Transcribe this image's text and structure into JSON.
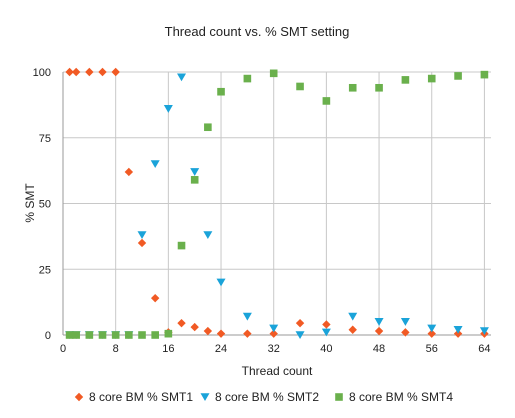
{
  "chart_data": {
    "type": "scatter",
    "title": "Thread count vs. % SMT setting",
    "xlabel": "Thread count",
    "ylabel": "% SMT",
    "xlim": [
      0,
      65
    ],
    "ylim": [
      0,
      100
    ],
    "xticks": [
      0,
      8,
      16,
      24,
      32,
      40,
      48,
      56,
      64
    ],
    "yticks": [
      0,
      25,
      50,
      75,
      100
    ],
    "grid": "vertical at x ticks, horizontal at y ticks",
    "legend_position": "bottom",
    "series": [
      {
        "name": "8 core BM % SMT1",
        "color": "#f15a24",
        "marker": "diamond",
        "points": [
          [
            1,
            100
          ],
          [
            2,
            100
          ],
          [
            4,
            100
          ],
          [
            6,
            100
          ],
          [
            8,
            100
          ],
          [
            10,
            62
          ],
          [
            12,
            35
          ],
          [
            14,
            14
          ],
          [
            16,
            1
          ],
          [
            18,
            4.5
          ],
          [
            20,
            3
          ],
          [
            22,
            1.5
          ],
          [
            24,
            0.5
          ],
          [
            28,
            0.5
          ],
          [
            32,
            0.5
          ],
          [
            36,
            4.5
          ],
          [
            40,
            4
          ],
          [
            44,
            2
          ],
          [
            48,
            1.5
          ],
          [
            52,
            1
          ],
          [
            56,
            0.5
          ],
          [
            60,
            0.5
          ],
          [
            64,
            0.5
          ]
        ]
      },
      {
        "name": "8 core BM % SMT2",
        "color": "#1aa3d9",
        "marker": "triangle-down",
        "points": [
          [
            1,
            0
          ],
          [
            2,
            0
          ],
          [
            4,
            0
          ],
          [
            6,
            0
          ],
          [
            8,
            0
          ],
          [
            10,
            0
          ],
          [
            12,
            38
          ],
          [
            14,
            65
          ],
          [
            16,
            86
          ],
          [
            18,
            98
          ],
          [
            20,
            62
          ],
          [
            22,
            38
          ],
          [
            24,
            20
          ],
          [
            28,
            7
          ],
          [
            32,
            2.5
          ],
          [
            36,
            0
          ],
          [
            40,
            1
          ],
          [
            44,
            7
          ],
          [
            48,
            5
          ],
          [
            52,
            5
          ],
          [
            56,
            2.5
          ],
          [
            60,
            2
          ],
          [
            64,
            1.5
          ]
        ]
      },
      {
        "name": "8 core BM % SMT4",
        "color": "#6ab04c",
        "marker": "square",
        "points": [
          [
            1,
            0
          ],
          [
            2,
            0
          ],
          [
            4,
            0
          ],
          [
            6,
            0
          ],
          [
            8,
            0
          ],
          [
            10,
            0
          ],
          [
            12,
            0
          ],
          [
            14,
            0
          ],
          [
            16,
            0.5
          ],
          [
            18,
            34
          ],
          [
            20,
            59
          ],
          [
            22,
            79
          ],
          [
            24,
            92.5
          ],
          [
            28,
            97.5
          ],
          [
            32,
            99.5
          ],
          [
            36,
            94.5
          ],
          [
            40,
            89
          ],
          [
            44,
            94
          ],
          [
            48,
            94
          ],
          [
            52,
            97
          ],
          [
            56,
            97.5
          ],
          [
            60,
            98.5
          ],
          [
            64,
            99
          ]
        ]
      }
    ]
  }
}
